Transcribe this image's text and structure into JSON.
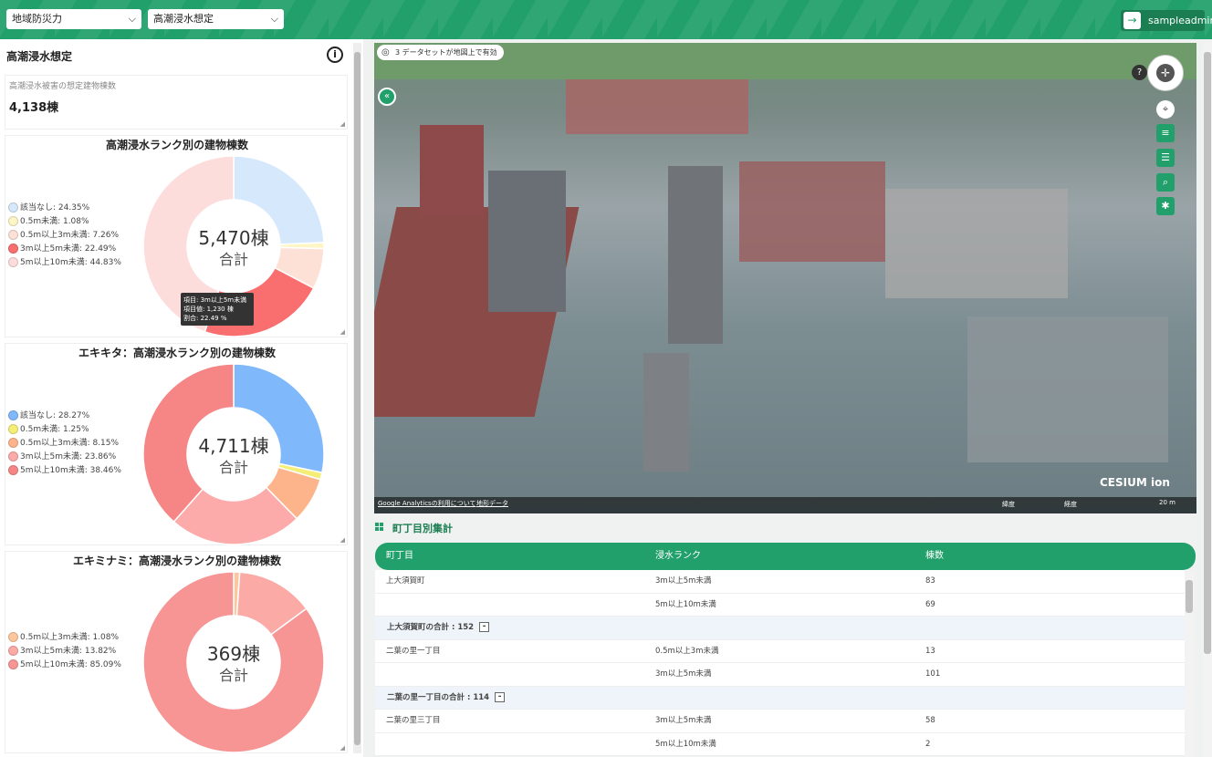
{
  "header": {
    "region_select": "地域防災力",
    "scenario_select": "高潮浸水想定",
    "user": "sampleadmin",
    "brand_color": "#22a06b"
  },
  "left": {
    "title": "高潮浸水想定",
    "count_label": "高潮浸水被害の想定建物棟数",
    "count_value": "4,138棟",
    "charts": [
      {
        "title": "高潮浸水ランク別の建物棟数",
        "legend": [
          "該当なし: 24.35%",
          "0.5m未満: 1.08%",
          "0.5m以上3m未満: 7.26%",
          "3m以上5m未満: 22.49%",
          "5m以上10m未満: 44.83%"
        ],
        "center_value": "5,470棟",
        "center_label": "合計",
        "tooltip": [
          "項目: 3m以上5m未満",
          "項目値: 1,230 棟",
          "割合: 22.49 %"
        ]
      },
      {
        "title": "エキキタ：高潮浸水ランク別の建物棟数",
        "legend": [
          "該当なし: 28.27%",
          "0.5m未満: 1.25%",
          "0.5m以上3m未満: 8.15%",
          "3m以上5m未満: 23.86%",
          "5m以上10m未満: 38.46%"
        ],
        "center_value": "4,711棟",
        "center_label": "合計"
      },
      {
        "title": "エキミナミ：高潮浸水ランク別の建物棟数",
        "legend": [
          "0.5m以上3m未満: 1.08%",
          "3m以上5m未満: 13.82%",
          "5m以上10m未満: 85.09%"
        ],
        "center_value": "369棟",
        "center_label": "合計"
      }
    ]
  },
  "chart_data": [
    {
      "type": "pie",
      "title": "高潮浸水ランク別の建物棟数",
      "categories": [
        "該当なし",
        "0.5m未満",
        "0.5m以上3m未満",
        "3m以上5m未満",
        "5m以上10m未満"
      ],
      "values": [
        24.35,
        1.08,
        7.26,
        22.49,
        44.83
      ],
      "colors": [
        "#d6e8fb",
        "#fdf6c4",
        "#fde0d6",
        "#f96f6f",
        "#fddcdc"
      ]
    },
    {
      "type": "pie",
      "title": "エキキタ：高潮浸水ランク別の建物棟数",
      "categories": [
        "該当なし",
        "0.5m未満",
        "0.5m以上3m未満",
        "3m以上5m未満",
        "5m以上10m未満"
      ],
      "values": [
        28.27,
        1.25,
        8.15,
        23.86,
        38.46
      ],
      "colors": [
        "#7fb8fb",
        "#f5ee76",
        "#fdb48a",
        "#fcaaaa",
        "#f68585"
      ]
    },
    {
      "type": "pie",
      "title": "エキミナミ：高潮浸水ランク別の建物棟数",
      "categories": [
        "0.5m以上3m未満",
        "3m以上5m未満",
        "5m以上10m未満"
      ],
      "values": [
        1.08,
        13.82,
        85.09
      ],
      "colors": [
        "#fdc69c",
        "#fbaaa6",
        "#f79595"
      ]
    }
  ],
  "map": {
    "badge": "3 データセットが地図上で有効",
    "attribution_1": "Google Analyticsの利用について",
    "attribution_2": "地形データ",
    "logo": "CESIUM ion",
    "lat_label": "緯度",
    "lon_label": "経度",
    "scale": "20 m"
  },
  "table": {
    "section_title": "町丁目別集計",
    "headers": [
      "町丁目",
      "浸水ランク",
      "棟数"
    ],
    "rows": [
      {
        "area": "上大須賀町",
        "rank": "3m以上5m未満",
        "count": "83"
      },
      {
        "area": "",
        "rank": "5m以上10m未満",
        "count": "69"
      },
      {
        "subtotal": "上大須賀町の合計 : 152"
      },
      {
        "area": "二葉の里一丁目",
        "rank": "0.5m以上3m未満",
        "count": "13"
      },
      {
        "area": "",
        "rank": "3m以上5m未満",
        "count": "101"
      },
      {
        "subtotal": "二葉の里一丁目の合計 : 114"
      },
      {
        "area": "二葉の里三丁目",
        "rank": "3m以上5m未満",
        "count": "58"
      },
      {
        "area": "",
        "rank": "5m以上10m未満",
        "count": "2"
      }
    ]
  }
}
